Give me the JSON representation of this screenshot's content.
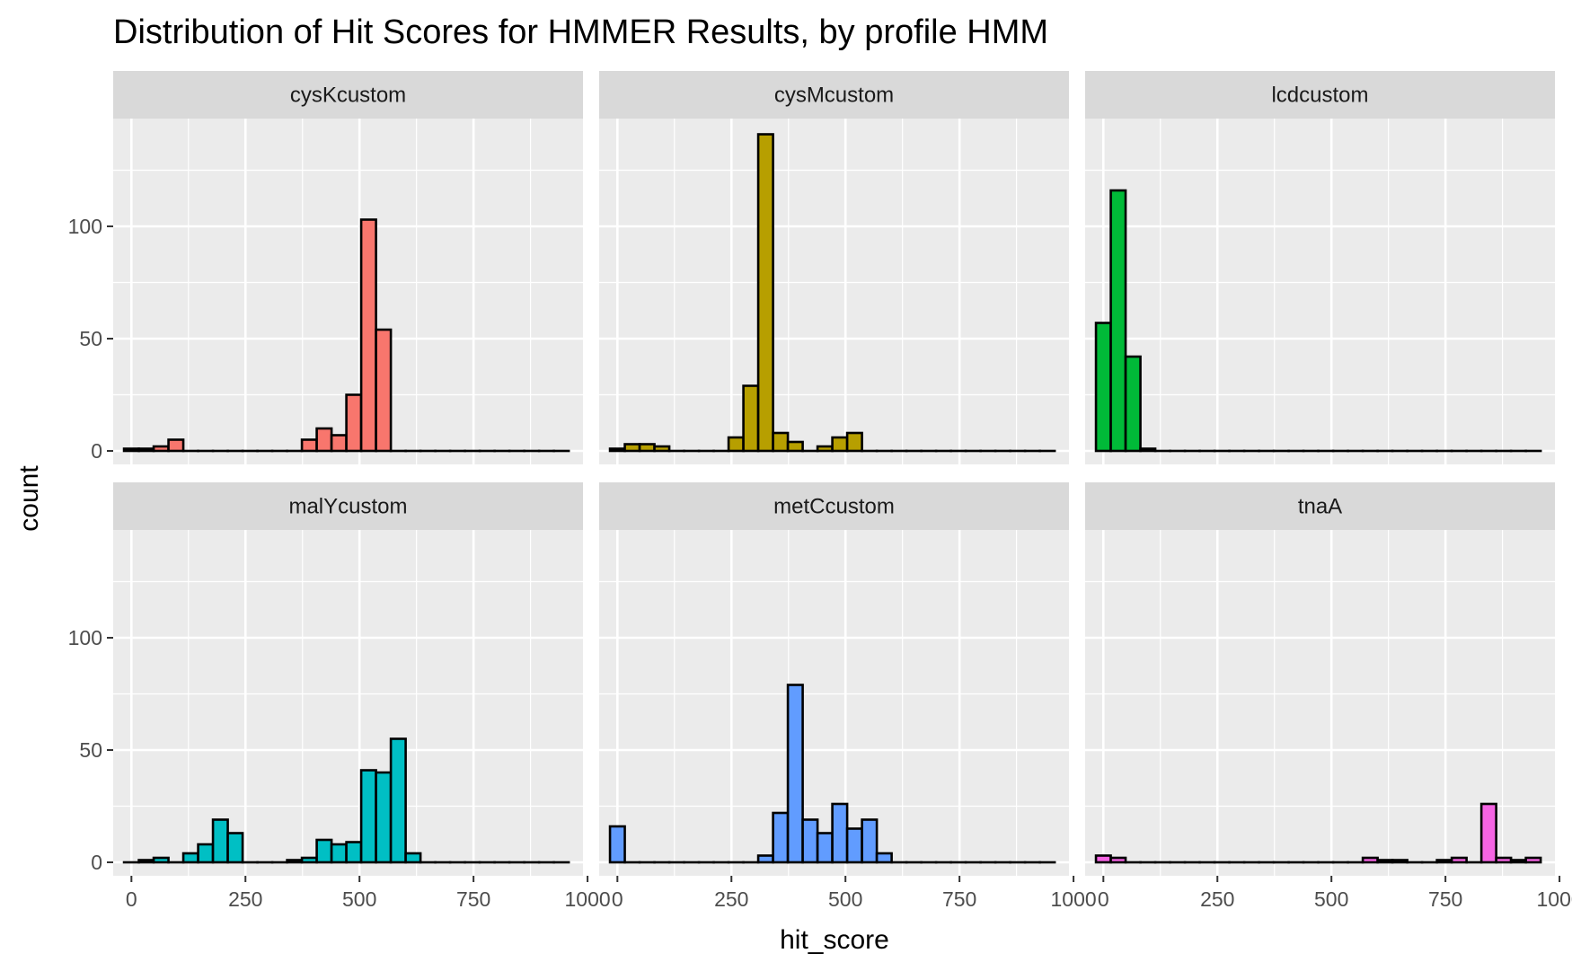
{
  "chart_data": {
    "type": "bar",
    "title": "Distribution of Hit Scores for HMMER Results, by profile HMM",
    "xlabel": "hit_score",
    "ylabel": "count",
    "xlim": [
      -40,
      990
    ],
    "ylim": [
      -6,
      148
    ],
    "x_ticks": [
      0,
      250,
      500,
      750,
      1000
    ],
    "y_ticks": [
      0,
      50,
      100
    ],
    "bin_width": 32.5,
    "grid": true,
    "legend": "none",
    "bin_centers": [
      0,
      32.5,
      65,
      97.5,
      130,
      162.5,
      195,
      227.5,
      260,
      292.5,
      325,
      357.5,
      390,
      422.5,
      455,
      487.5,
      520,
      552.5,
      585,
      617.5,
      650,
      682.5,
      715,
      747.5,
      780,
      812.5,
      845,
      877.5,
      910,
      942.5
    ],
    "panels": [
      {
        "name": "cysKcustom",
        "color": "#F8766D",
        "values": [
          1,
          1,
          2,
          5,
          0,
          0,
          0,
          0,
          0,
          0,
          0,
          0,
          5,
          10,
          7,
          25,
          103,
          54,
          0,
          0,
          0,
          0,
          0,
          0,
          0,
          0,
          0,
          0,
          0,
          0
        ]
      },
      {
        "name": "cysMcustom",
        "color": "#B79F00",
        "values": [
          1,
          3,
          3,
          2,
          0,
          0,
          0,
          0,
          6,
          29,
          141,
          8,
          4,
          0,
          2,
          6,
          8,
          0,
          0,
          0,
          0,
          0,
          0,
          0,
          0,
          0,
          0,
          0,
          0,
          0
        ]
      },
      {
        "name": "lcdcustom",
        "color": "#00BA38",
        "values": [
          57,
          116,
          42,
          1,
          0,
          0,
          0,
          0,
          0,
          0,
          0,
          0,
          0,
          0,
          0,
          0,
          0,
          0,
          0,
          0,
          0,
          0,
          0,
          0,
          0,
          0,
          0,
          0,
          0,
          0
        ]
      },
      {
        "name": "malYcustom",
        "color": "#00BFC4",
        "values": [
          0,
          1,
          2,
          0,
          4,
          8,
          19,
          13,
          0,
          0,
          0,
          1,
          2,
          10,
          8,
          9,
          41,
          40,
          55,
          4,
          0,
          0,
          0,
          0,
          0,
          0,
          0,
          0,
          0,
          0
        ]
      },
      {
        "name": "metCcustom",
        "color": "#619CFF",
        "values": [
          16,
          0,
          0,
          0,
          0,
          0,
          0,
          0,
          0,
          0,
          3,
          22,
          79,
          19,
          13,
          26,
          15,
          19,
          4,
          0,
          0,
          0,
          0,
          0,
          0,
          0,
          0,
          0,
          0,
          0
        ]
      },
      {
        "name": "tnaA",
        "color": "#F564E3",
        "values": [
          3,
          2,
          0,
          0,
          0,
          0,
          0,
          0,
          0,
          0,
          0,
          0,
          0,
          0,
          0,
          0,
          0,
          0,
          2,
          1,
          1,
          0,
          0,
          1,
          2,
          0,
          26,
          2,
          1,
          2
        ]
      }
    ]
  }
}
